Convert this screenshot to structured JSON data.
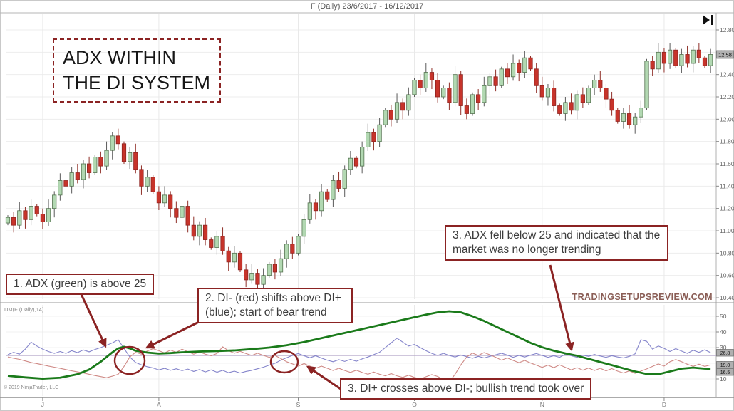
{
  "window": {
    "title": "F (Daily)  23/6/2017 - 16/12/2017"
  },
  "overlay": {
    "headline": "ADX WITHIN THE DI SYSTEM",
    "notes": [
      {
        "id": "note-adx-above-25",
        "text": "1. ADX (green) is above 25"
      },
      {
        "id": "note-di-minus-cross",
        "text": "2. DI- (red) shifts above DI+ (blue); start of bear trend"
      },
      {
        "id": "note-adx-below-25",
        "text": "3. ADX fell below 25 and indicated that the market was no longer trending"
      },
      {
        "id": "note-di-plus-cross",
        "text": "3. DI+ crosses above DI-; bullish trend took over"
      }
    ],
    "watermark": "TRADINGSETUPSREVIEW.COM"
  },
  "footer": {
    "copyright": "© 2019 NinjaTrader, LLC"
  },
  "colors": {
    "up_candle": "#b2d8b2",
    "up_border": "#54724f",
    "down_candle": "#c7342b",
    "down_border": "#8f2420",
    "wick": "#5a5a5a",
    "adx": "#1a7a1a",
    "di_plus": "#8585cb",
    "di_minus": "#cf8a86",
    "threshold": "#b2a4c6",
    "annotation": "#8b2323",
    "grid": "#ededed",
    "axis": "#9a9a9a",
    "label": "#666666",
    "value_box": "#b0b0b0"
  },
  "chart_data": [
    {
      "type": "candlestick",
      "symbol": "F",
      "period": "Daily",
      "date_range": "23/6/2017 - 16/12/2017",
      "title": "F (Daily)  23/6/2017 - 16/12/2017",
      "last_price": "12.58",
      "y_axis": {
        "ticks": [
          12.8,
          12.6,
          12.4,
          12.2,
          12.0,
          11.8,
          11.6,
          11.4,
          11.2,
          11.0,
          10.8,
          10.6,
          10.4
        ]
      },
      "x_axis": {
        "labels": [
          "J",
          "A",
          "S",
          "O",
          "N",
          "D"
        ],
        "bar_index": [
          6,
          26,
          50,
          70,
          92,
          113
        ]
      },
      "closes": [
        11.12,
        11.05,
        11.18,
        11.1,
        11.22,
        11.15,
        11.08,
        11.2,
        11.32,
        11.45,
        11.4,
        11.52,
        11.46,
        11.6,
        11.52,
        11.66,
        11.58,
        11.72,
        11.85,
        11.78,
        11.62,
        11.7,
        11.55,
        11.4,
        11.48,
        11.35,
        11.25,
        11.32,
        11.2,
        11.12,
        11.22,
        11.05,
        10.95,
        11.05,
        10.92,
        10.85,
        10.95,
        10.82,
        10.72,
        10.8,
        10.65,
        10.56,
        10.62,
        10.52,
        10.6,
        10.7,
        10.63,
        10.75,
        10.88,
        10.8,
        10.95,
        11.1,
        11.25,
        11.18,
        11.35,
        11.28,
        11.45,
        11.38,
        11.55,
        11.65,
        11.58,
        11.75,
        11.88,
        11.8,
        11.95,
        12.08,
        12.0,
        12.15,
        12.08,
        12.22,
        12.35,
        12.28,
        12.42,
        12.35,
        12.2,
        12.28,
        12.15,
        12.4,
        12.12,
        12.05,
        12.22,
        12.15,
        12.3,
        12.38,
        12.3,
        12.45,
        12.38,
        12.5,
        12.42,
        12.55,
        12.45,
        12.3,
        12.2,
        12.28,
        12.12,
        12.05,
        12.15,
        12.08,
        12.22,
        12.15,
        12.28,
        12.35,
        12.28,
        12.18,
        12.08,
        11.98,
        12.05,
        11.95,
        12.02,
        12.1,
        12.52,
        12.45,
        12.6,
        12.5,
        12.62,
        12.48,
        12.58,
        12.5,
        12.62,
        12.55,
        12.48,
        12.58
      ]
    },
    {
      "type": "line",
      "name": "DM(F (Daily),14)",
      "threshold": 25,
      "y_ticks": [
        10,
        20,
        30,
        40,
        50
      ],
      "series": [
        {
          "name": "ADX",
          "color_key": "adx",
          "width": 2.8,
          "points": [
            [
              0,
              12
            ],
            [
              3,
              11
            ],
            [
              6,
              10.2
            ],
            [
              9,
              10.8
            ],
            [
              12,
              13
            ],
            [
              14,
              16
            ],
            [
              16,
              21
            ],
            [
              18,
              27
            ],
            [
              19,
              29.5
            ],
            [
              20,
              30.5
            ],
            [
              21,
              29.5
            ],
            [
              22,
              28
            ],
            [
              24,
              26.8
            ],
            [
              26,
              26.2
            ],
            [
              28,
              26.5
            ],
            [
              30,
              27
            ],
            [
              33,
              27.5
            ],
            [
              36,
              27.8
            ],
            [
              39,
              28.2
            ],
            [
              42,
              29
            ],
            [
              45,
              30
            ],
            [
              48,
              31.5
            ],
            [
              51,
              33.5
            ],
            [
              54,
              36
            ],
            [
              57,
              38.5
            ],
            [
              60,
              41
            ],
            [
              63,
              43.5
            ],
            [
              66,
              46
            ],
            [
              69,
              48.5
            ],
            [
              72,
              51
            ],
            [
              74,
              52.5
            ],
            [
              76,
              53.2
            ],
            [
              78,
              52.5
            ],
            [
              80,
              50
            ],
            [
              82,
              47
            ],
            [
              84,
              43.5
            ],
            [
              86,
              40
            ],
            [
              88,
              36.5
            ],
            [
              90,
              33
            ],
            [
              92,
              30.2
            ],
            [
              94,
              28
            ],
            [
              96,
              26.3
            ],
            [
              98,
              24.8
            ],
            [
              100,
              22.8
            ],
            [
              102,
              20.8
            ],
            [
              104,
              18.8
            ],
            [
              106,
              16.8
            ],
            [
              108,
              14.8
            ],
            [
              110,
              13.2
            ],
            [
              112,
              13
            ],
            [
              114,
              14.8
            ],
            [
              116,
              16.6
            ],
            [
              118,
              17.2
            ],
            [
              120,
              16.6
            ],
            [
              121,
              16.5
            ]
          ]
        },
        {
          "name": "DI+",
          "color_key": "di_plus",
          "width": 1.1,
          "values": [
            25.5,
            27,
            25.8,
            29,
            33.5,
            31,
            29,
            27.5,
            26.3,
            27.5,
            26.3,
            28,
            26.8,
            28.5,
            27.3,
            28.8,
            30,
            31.5,
            33,
            35,
            29.5,
            24,
            20.5,
            19,
            17.8,
            17,
            15.8,
            16.8,
            15.5,
            16.5,
            15.3,
            16.3,
            14.8,
            16,
            14.5,
            15.8,
            14.3,
            15.5,
            14,
            15,
            13.8,
            14.8,
            15.5,
            16.5,
            17.5,
            18.8,
            20,
            22,
            23.5,
            25,
            26.2,
            24.8,
            23.5,
            24.8,
            23.3,
            22,
            21,
            22.3,
            21.2,
            22.5,
            21.3,
            22.8,
            24,
            25.5,
            27,
            30,
            33,
            36,
            33.5,
            31,
            32,
            30,
            28,
            26.3,
            25,
            26.3,
            25,
            24,
            25.3,
            24.2,
            23.2,
            24.4,
            23.4,
            24.4,
            25.4,
            26.4,
            25.2,
            23.8,
            25,
            24,
            25.2,
            26.2,
            25,
            23.8,
            24.8,
            23.8,
            25.8,
            24.8,
            23.8,
            25.2,
            24.4,
            25.6,
            24.6,
            23.8,
            24.8,
            24,
            23.4,
            24.4,
            26,
            35,
            34,
            29,
            31,
            29.5,
            27.5,
            29.3,
            27.8,
            26.3,
            28.3,
            27,
            28.6,
            26.8
          ]
        },
        {
          "name": "DI-",
          "color_key": "di_minus",
          "width": 1.1,
          "values": [
            24,
            23.2,
            22.5,
            21.5,
            20.5,
            19.8,
            19,
            18.2,
            17.5,
            16.8,
            16,
            15.2,
            14.5,
            13.8,
            13,
            12.2,
            11.5,
            10.8,
            11.8,
            13,
            18,
            24,
            27,
            25.8,
            27.8,
            29.3,
            28,
            26.6,
            28.4,
            27,
            29,
            27.4,
            25.8,
            27.2,
            25.8,
            24.8,
            26.2,
            30.5,
            28,
            26.4,
            27.6,
            26.2,
            25,
            26.4,
            25,
            23.8,
            25,
            23,
            21,
            19.6,
            18.2,
            19.8,
            18.2,
            16.8,
            18.2,
            16.8,
            15.4,
            16.8,
            15.4,
            14.2,
            15.6,
            14.2,
            13,
            14.4,
            13,
            12,
            13.4,
            12,
            11,
            12.4,
            11,
            10,
            11.4,
            12.8,
            11.6,
            9.6,
            8,
            13,
            19,
            24,
            26.5,
            25,
            26.8,
            25.4,
            23.8,
            22,
            23.4,
            21.8,
            20.4,
            21.8,
            20.2,
            18.8,
            17.4,
            18.8,
            17.2,
            19,
            17.4,
            15.8,
            17.2,
            15.6,
            17,
            15.4,
            16.8,
            15.2,
            16.6,
            15,
            13.8,
            15.2,
            13.6,
            15,
            16.4,
            18,
            19.6,
            18.2,
            21,
            22.4,
            21,
            19.4,
            18,
            19.4,
            18,
            19
          ]
        }
      ],
      "last_values": [
        {
          "series": "DI+",
          "value": "26.8"
        },
        {
          "series": "DI-",
          "value": "19.0"
        },
        {
          "series": "ADX",
          "value": "16.5"
        }
      ]
    }
  ]
}
